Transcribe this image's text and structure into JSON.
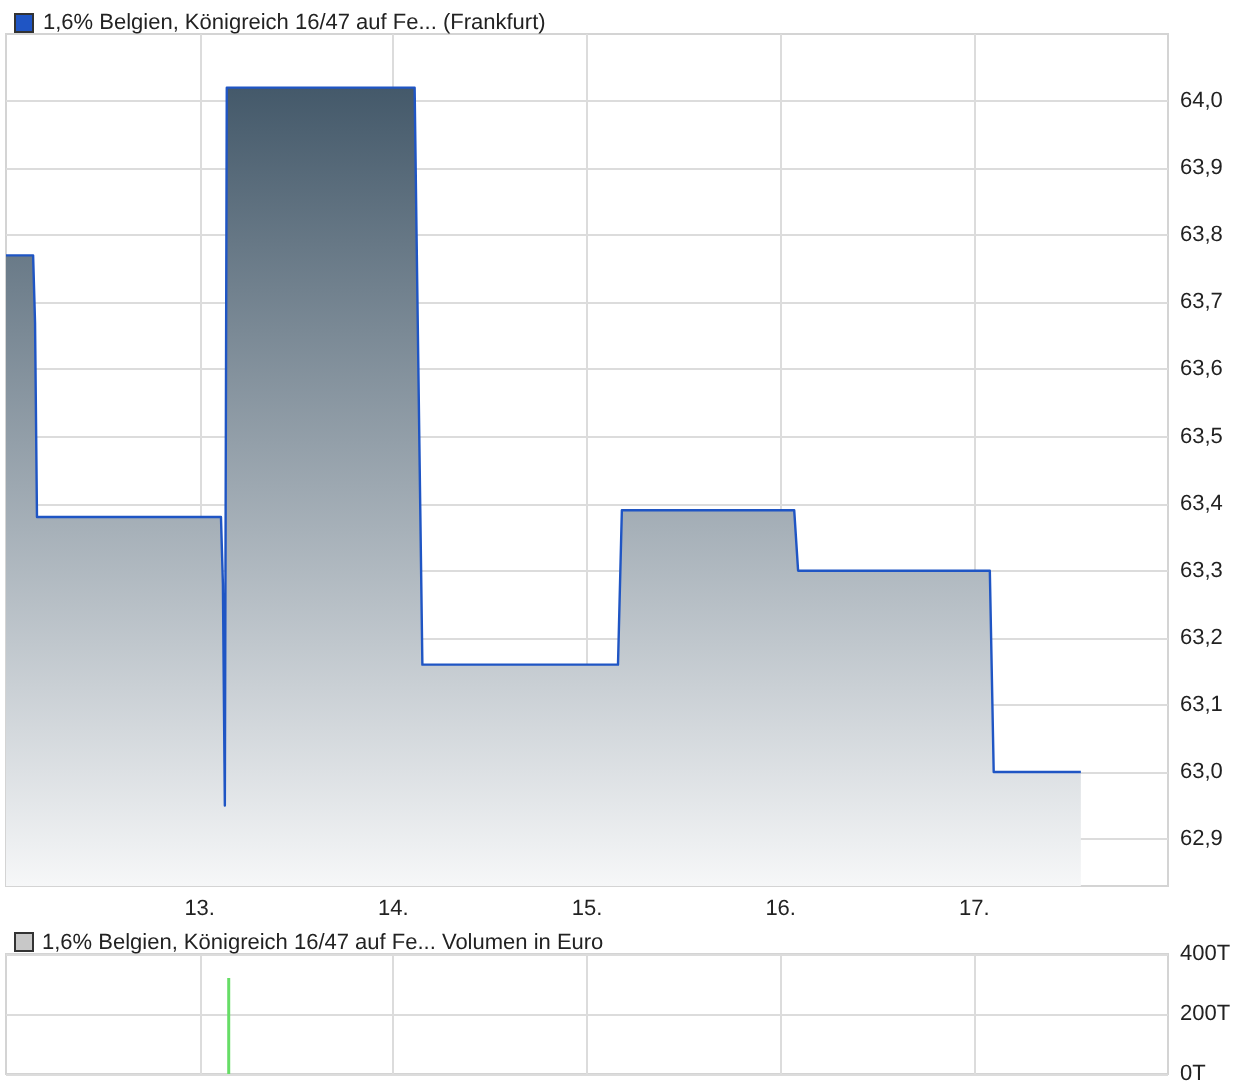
{
  "chart_data": [
    {
      "type": "area",
      "legend": "top left",
      "grid": true,
      "marker": "none",
      "line_style": "solid",
      "xlim": [
        12,
        18
      ],
      "xticks": [
        {
          "value": 13,
          "label": "13."
        },
        {
          "value": 14,
          "label": "14."
        },
        {
          "value": 15,
          "label": "15."
        },
        {
          "value": 16,
          "label": "16."
        },
        {
          "value": 17,
          "label": "17."
        }
      ],
      "ylim": [
        62.83,
        64.1
      ],
      "yticks": [
        {
          "value": 62.9,
          "label": "62,9"
        },
        {
          "value": 63.0,
          "label": "63,0"
        },
        {
          "value": 63.1,
          "label": "63,1"
        },
        {
          "value": 63.2,
          "label": "63,2"
        },
        {
          "value": 63.3,
          "label": "63,3"
        },
        {
          "value": 63.4,
          "label": "63,4"
        },
        {
          "value": 63.5,
          "label": "63,5"
        },
        {
          "value": 63.6,
          "label": "63,6"
        },
        {
          "value": 63.7,
          "label": "63,7"
        },
        {
          "value": 63.8,
          "label": "63,8"
        },
        {
          "value": 63.9,
          "label": "63,9"
        },
        {
          "value": 64.0,
          "label": "64,0"
        }
      ],
      "series": [
        {
          "name": "1,6% Belgien, Königreich 16/47 auf Fe... (Frankfurt)",
          "color": "#1f55c4",
          "x": [
            12.0,
            12.14,
            12.15,
            12.16,
            13.11,
            13.12,
            13.13,
            13.14,
            14.11,
            14.12,
            14.15,
            15.16,
            15.18,
            16.07,
            16.09,
            17.08,
            17.1,
            17.55
          ],
          "values": [
            63.77,
            63.77,
            63.67,
            63.38,
            63.38,
            63.28,
            62.95,
            64.02,
            64.02,
            63.8,
            63.16,
            63.16,
            63.39,
            63.39,
            63.3,
            63.3,
            63.0,
            63.0
          ]
        }
      ]
    },
    {
      "type": "bar",
      "legend": "top left",
      "grid": true,
      "tick_labels": "y",
      "xlim": [
        12,
        18
      ],
      "xticks": [
        13,
        14,
        15,
        16,
        17
      ],
      "ylim": [
        0,
        400
      ],
      "yticks": [
        {
          "value": 0,
          "label": "0T"
        },
        {
          "value": 200,
          "label": "200T"
        },
        {
          "value": 400,
          "label": "400T"
        }
      ],
      "series": [
        {
          "name": "1,6% Belgien, Königreich 16/47 auf Fe... Volumen in Euro",
          "color": "#66dd66",
          "x": [
            13.15
          ],
          "values": [
            320
          ]
        }
      ]
    }
  ]
}
